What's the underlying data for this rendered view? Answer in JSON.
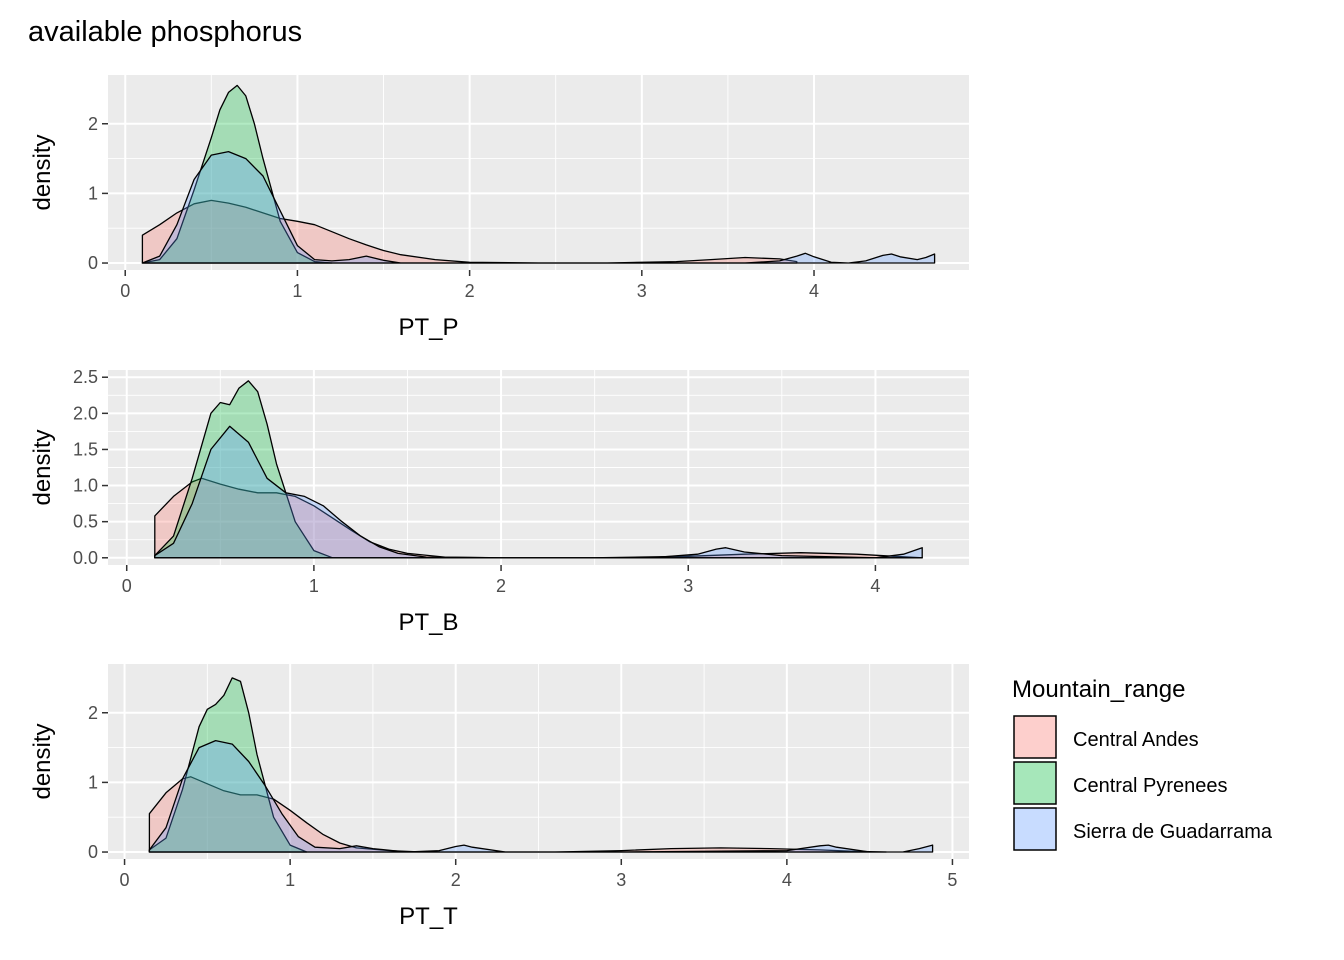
{
  "title": "available phosphorus",
  "colors": {
    "panel_bg": "#ebebeb",
    "grid": "#ffffff",
    "tick_text": "#4d4d4d",
    "outline": "#000000"
  },
  "legend": {
    "title": "Mountain_range",
    "placement": "right",
    "items": [
      {
        "label": "Central Andes",
        "color": "#F8766D"
      },
      {
        "label": "Central Pyrenees",
        "color": "#00BA38"
      },
      {
        "label": "Sierra de Guadarrama",
        "color": "#619CFF"
      }
    ]
  },
  "chart_data": [
    {
      "type": "area",
      "subtype": "density",
      "xlabel": "PT_P",
      "ylabel": "density",
      "xlim": [
        -0.1,
        4.9
      ],
      "ylim": [
        -0.1,
        2.7
      ],
      "xticks": [
        0,
        1,
        2,
        3,
        4
      ],
      "xtick_labels": [
        "0",
        "1",
        "2",
        "3",
        "4"
      ],
      "yticks": [
        0,
        1,
        2
      ],
      "ytick_labels": [
        "0",
        "1",
        "2"
      ],
      "grid": true,
      "series": [
        {
          "name": "Central Andes",
          "x": [
            0.1,
            0.2,
            0.3,
            0.4,
            0.5,
            0.6,
            0.7,
            0.8,
            0.9,
            1.0,
            1.1,
            1.2,
            1.3,
            1.4,
            1.5,
            1.6,
            1.8,
            2.0,
            2.4,
            2.8,
            3.2,
            3.4,
            3.6,
            3.8,
            3.9
          ],
          "y": [
            0.4,
            0.55,
            0.72,
            0.85,
            0.9,
            0.86,
            0.8,
            0.72,
            0.64,
            0.6,
            0.55,
            0.45,
            0.35,
            0.26,
            0.18,
            0.12,
            0.05,
            0.01,
            0.0,
            0.0,
            0.02,
            0.05,
            0.08,
            0.06,
            0.02
          ]
        },
        {
          "name": "Central Pyrenees",
          "x": [
            0.1,
            0.2,
            0.3,
            0.4,
            0.5,
            0.55,
            0.6,
            0.65,
            0.7,
            0.75,
            0.8,
            0.9,
            1.0,
            1.1,
            1.2
          ],
          "y": [
            0.0,
            0.05,
            0.35,
            1.05,
            1.8,
            2.2,
            2.45,
            2.55,
            2.4,
            2.0,
            1.5,
            0.6,
            0.15,
            0.02,
            0.0
          ]
        },
        {
          "name": "Sierra de Guadarrama",
          "x": [
            0.1,
            0.2,
            0.3,
            0.4,
            0.5,
            0.6,
            0.7,
            0.8,
            0.9,
            1.0,
            1.1,
            1.2,
            1.3,
            1.4,
            1.5,
            1.6,
            2.0,
            3.0,
            3.6,
            3.8,
            3.9,
            3.95,
            4.0,
            4.1,
            4.2,
            4.3,
            4.4,
            4.45,
            4.5,
            4.6,
            4.65,
            4.7
          ],
          "y": [
            0.0,
            0.1,
            0.55,
            1.2,
            1.55,
            1.6,
            1.5,
            1.25,
            0.75,
            0.25,
            0.05,
            0.03,
            0.05,
            0.1,
            0.04,
            0.0,
            0.0,
            0.0,
            0.0,
            0.03,
            0.1,
            0.14,
            0.09,
            0.01,
            0.0,
            0.03,
            0.11,
            0.13,
            0.09,
            0.05,
            0.08,
            0.13
          ]
        }
      ]
    },
    {
      "type": "area",
      "subtype": "density",
      "xlabel": "PT_B",
      "ylabel": "density",
      "xlim": [
        -0.1,
        4.5
      ],
      "ylim": [
        -0.1,
        2.6
      ],
      "xticks": [
        0,
        1,
        2,
        3,
        4
      ],
      "xtick_labels": [
        "0",
        "1",
        "2",
        "3",
        "4"
      ],
      "yticks": [
        0,
        0.5,
        1,
        1.5,
        2,
        2.5
      ],
      "ytick_labels": [
        "0.0",
        "0.5",
        "1.0",
        "1.5",
        "2.0",
        "2.5"
      ],
      "grid": true,
      "series": [
        {
          "name": "Central Andes",
          "x": [
            0.15,
            0.25,
            0.35,
            0.4,
            0.5,
            0.6,
            0.7,
            0.8,
            0.9,
            1.0,
            1.1,
            1.2,
            1.3,
            1.4,
            1.5,
            1.7,
            2.0,
            2.5,
            3.0,
            3.3,
            3.6,
            3.9,
            4.1,
            4.25
          ],
          "y": [
            0.58,
            0.85,
            1.05,
            1.1,
            1.02,
            0.95,
            0.9,
            0.9,
            0.85,
            0.72,
            0.55,
            0.38,
            0.22,
            0.12,
            0.06,
            0.01,
            0.0,
            0.0,
            0.02,
            0.05,
            0.07,
            0.05,
            0.02,
            0.0
          ]
        },
        {
          "name": "Central Pyrenees",
          "x": [
            0.15,
            0.25,
            0.35,
            0.45,
            0.5,
            0.55,
            0.6,
            0.65,
            0.7,
            0.75,
            0.8,
            0.9,
            1.0,
            1.1
          ],
          "y": [
            0.03,
            0.3,
            1.1,
            2.0,
            2.15,
            2.12,
            2.35,
            2.45,
            2.3,
            1.85,
            1.3,
            0.5,
            0.1,
            0.0
          ]
        },
        {
          "name": "Sierra de Guadarrama",
          "x": [
            0.15,
            0.25,
            0.35,
            0.45,
            0.55,
            0.65,
            0.75,
            0.85,
            0.95,
            1.05,
            1.15,
            1.25,
            1.35,
            1.45,
            1.6,
            2.0,
            2.8,
            3.05,
            3.15,
            3.2,
            3.3,
            3.5,
            4.0,
            4.15,
            4.25
          ],
          "y": [
            0.03,
            0.2,
            0.75,
            1.5,
            1.82,
            1.6,
            1.1,
            0.9,
            0.85,
            0.72,
            0.5,
            0.3,
            0.15,
            0.06,
            0.01,
            0.0,
            0.0,
            0.05,
            0.12,
            0.14,
            0.08,
            0.03,
            0.0,
            0.05,
            0.14
          ]
        }
      ]
    },
    {
      "type": "area",
      "subtype": "density",
      "xlabel": "PT_T",
      "ylabel": "density",
      "xlim": [
        -0.1,
        5.1
      ],
      "ylim": [
        -0.1,
        2.7
      ],
      "xticks": [
        0,
        1,
        2,
        3,
        4,
        5
      ],
      "xtick_labels": [
        "0",
        "1",
        "2",
        "3",
        "4",
        "5"
      ],
      "yticks": [
        0,
        1,
        2
      ],
      "ytick_labels": [
        "0",
        "1",
        "2"
      ],
      "grid": true,
      "series": [
        {
          "name": "Central Andes",
          "x": [
            0.15,
            0.25,
            0.35,
            0.4,
            0.5,
            0.6,
            0.7,
            0.8,
            0.9,
            1.0,
            1.1,
            1.2,
            1.3,
            1.4,
            1.6,
            1.8,
            2.2,
            2.6,
            3.0,
            3.3,
            3.6,
            3.9,
            4.2,
            4.4,
            4.6
          ],
          "y": [
            0.55,
            0.85,
            1.05,
            1.08,
            0.98,
            0.88,
            0.82,
            0.82,
            0.76,
            0.6,
            0.42,
            0.25,
            0.13,
            0.06,
            0.02,
            0.0,
            0.0,
            0.0,
            0.02,
            0.05,
            0.06,
            0.05,
            0.03,
            0.01,
            0.0
          ]
        },
        {
          "name": "Central Pyrenees",
          "x": [
            0.15,
            0.25,
            0.35,
            0.45,
            0.5,
            0.55,
            0.6,
            0.65,
            0.7,
            0.75,
            0.8,
            0.9,
            1.0,
            1.1
          ],
          "y": [
            0.03,
            0.2,
            0.9,
            1.8,
            2.05,
            2.12,
            2.25,
            2.5,
            2.45,
            2.0,
            1.4,
            0.5,
            0.1,
            0.0
          ]
        },
        {
          "name": "Sierra de Guadarrama",
          "x": [
            0.15,
            0.25,
            0.35,
            0.45,
            0.55,
            0.65,
            0.75,
            0.85,
            0.95,
            1.05,
            1.15,
            1.3,
            1.4,
            1.5,
            1.7,
            1.9,
            2.0,
            2.05,
            2.1,
            2.3,
            3.0,
            4.0,
            4.2,
            4.25,
            4.3,
            4.5,
            4.7,
            4.8,
            4.88
          ],
          "y": [
            0.03,
            0.35,
            1.05,
            1.5,
            1.6,
            1.55,
            1.3,
            0.95,
            0.55,
            0.22,
            0.07,
            0.05,
            0.09,
            0.05,
            0.0,
            0.02,
            0.08,
            0.1,
            0.07,
            0.0,
            0.0,
            0.02,
            0.09,
            0.1,
            0.07,
            0.0,
            0.0,
            0.05,
            0.1
          ]
        }
      ]
    }
  ]
}
